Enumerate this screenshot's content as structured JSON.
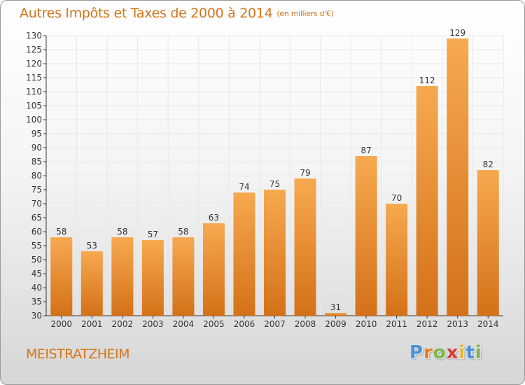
{
  "header": {
    "title": "Autres Impôts et Taxes de 2000 à 2014",
    "unit": "(en milliers d'€)"
  },
  "footer": {
    "commune": "MEISTRATZHEIM",
    "logo_letters": [
      "P",
      "r",
      "o",
      "x",
      "i",
      "t",
      "i"
    ]
  },
  "colors": {
    "accent": "#d4751c",
    "bar_light": "#f7a94f",
    "bar_dark": "#d47118",
    "grid": "#e8e8e8"
  },
  "chart_data": {
    "type": "bar",
    "title": "Autres Impôts et Taxes de 2000 à 2014",
    "subtitle": "(en milliers d'€)",
    "categories": [
      "2000",
      "2001",
      "2002",
      "2003",
      "2004",
      "2005",
      "2006",
      "2007",
      "2008",
      "2009",
      "2010",
      "2011",
      "2012",
      "2013",
      "2014"
    ],
    "values": [
      58,
      53,
      58,
      57,
      58,
      63,
      74,
      75,
      79,
      31,
      87,
      70,
      112,
      129,
      82
    ],
    "ylim": [
      30,
      130
    ],
    "ytick_step": 5,
    "grid": true,
    "legend": "none"
  }
}
